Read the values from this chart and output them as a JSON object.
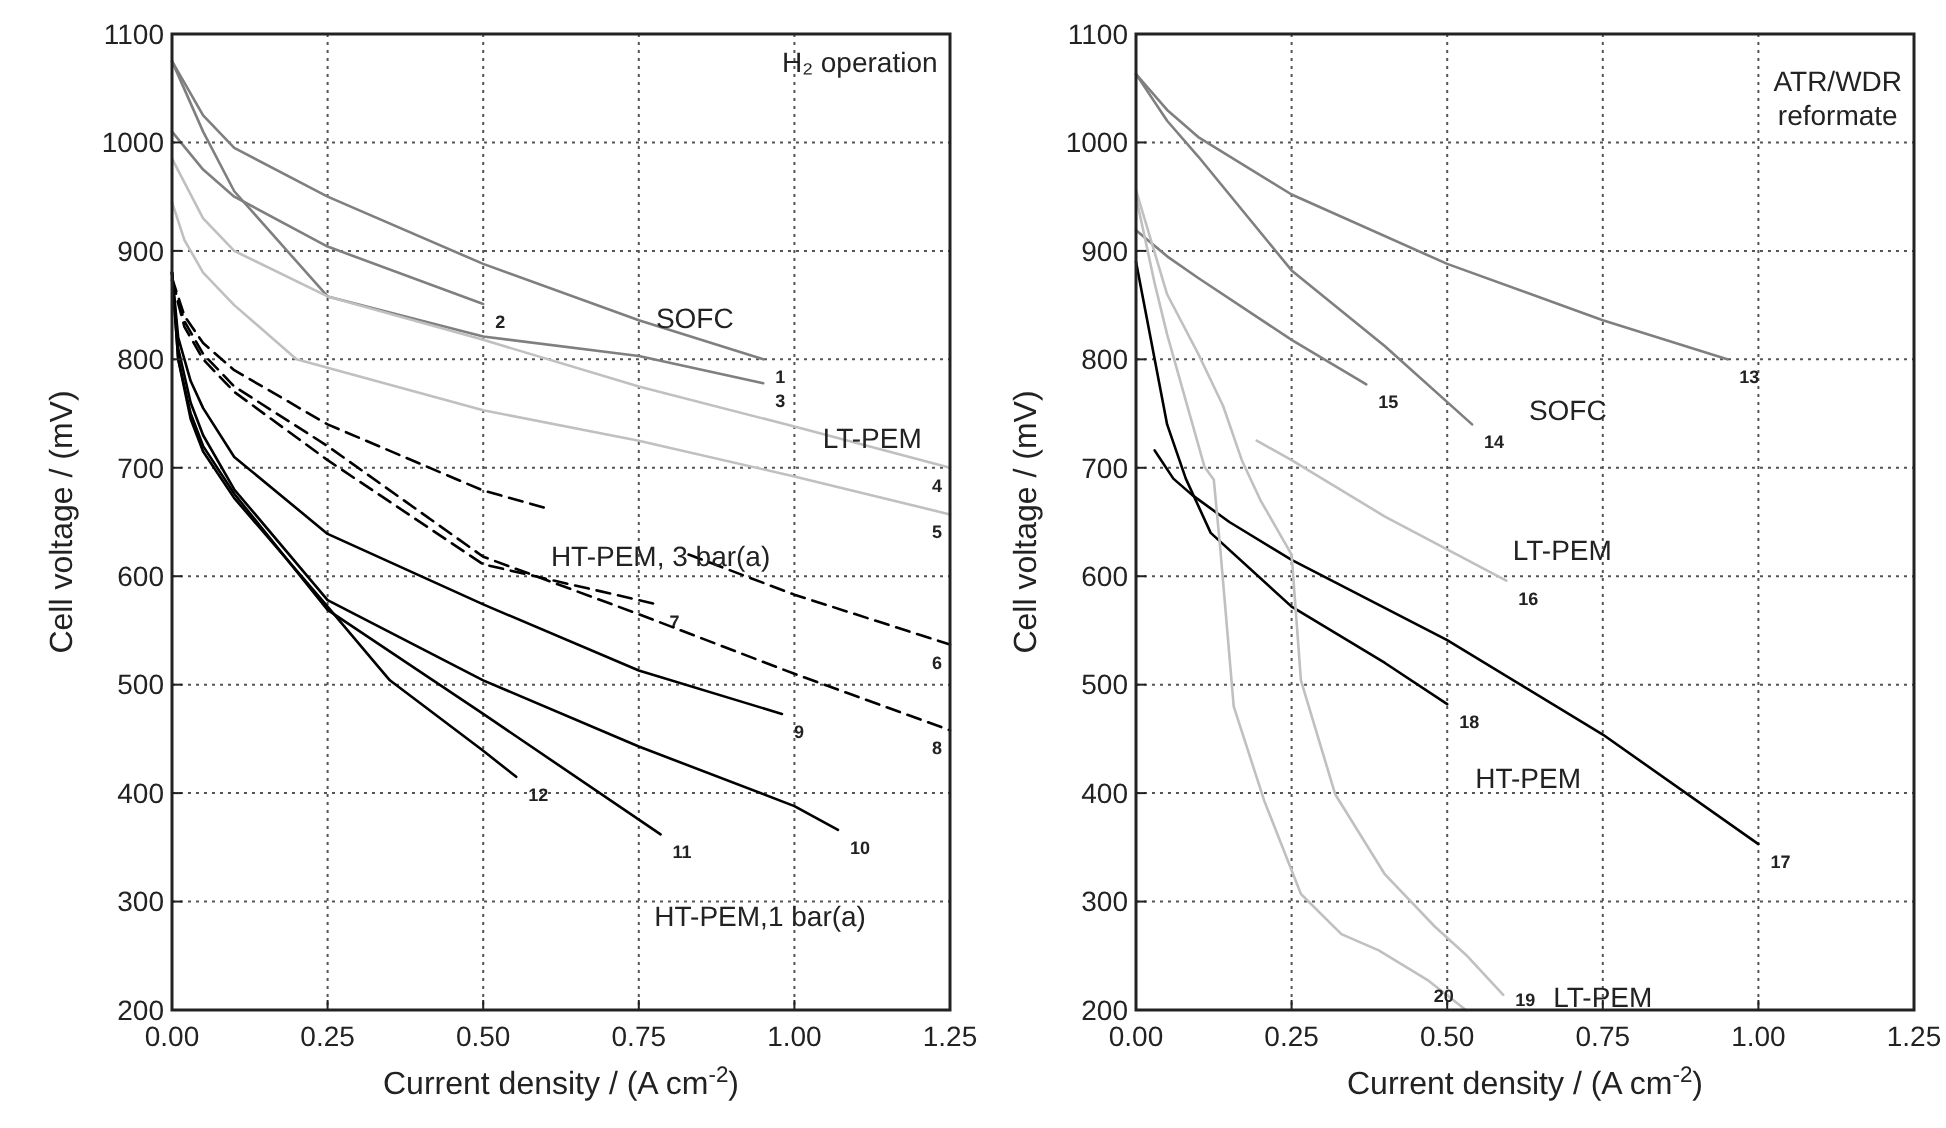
{
  "chart_data": [
    {
      "type": "line",
      "xlabel": "Current density / (A cm$^{-2}$)",
      "ylabel": "Cell voltage / (mV)",
      "xlim": [
        0,
        1.25
      ],
      "ylim": [
        200,
        1100
      ],
      "grid": true,
      "xticks": [
        {
          "value": 0,
          "label": "0.00"
        },
        {
          "value": 0.25,
          "label": "0.25"
        },
        {
          "value": 0.5,
          "label": "0.50"
        },
        {
          "value": 0.75,
          "label": "0.75"
        },
        {
          "value": 1,
          "label": "1.00"
        },
        {
          "value": 1.25,
          "label": "1.25"
        }
      ],
      "yticks": [
        200,
        300,
        400,
        500,
        600,
        700,
        800,
        900,
        1000,
        1100
      ],
      "annotations": [
        "H₂ operation",
        "SOFC",
        "LT-PEM",
        "HT-PEM, 3 bar(a)",
        "HT-PEM,1 bar(a)"
      ],
      "series": [
        {
          "name": "1",
          "color": "#7f7f7f",
          "x": [
            0,
            0.05,
            0.1,
            0.25,
            0.5,
            0.75,
            0.95
          ],
          "values": [
            1075,
            1025,
            995,
            950,
            888,
            836,
            800
          ]
        },
        {
          "name": "2",
          "color": "#7f7f7f",
          "x": [
            0,
            0.05,
            0.1,
            0.25,
            0.5
          ],
          "values": [
            1010,
            975,
            950,
            904,
            851
          ]
        },
        {
          "name": "3",
          "color": "#7f7f7f",
          "x": [
            0,
            0.05,
            0.1,
            0.25,
            0.5,
            0.75,
            0.95
          ],
          "values": [
            1075,
            1010,
            955,
            858,
            821,
            803,
            778
          ]
        },
        {
          "name": "4",
          "color": "#c0c0c0",
          "x": [
            0,
            0.05,
            0.1,
            0.25,
            0.5,
            0.75,
            1,
            1.25
          ],
          "values": [
            985,
            930,
            900,
            858,
            818,
            775,
            738,
            700
          ]
        },
        {
          "name": "5",
          "color": "#c0c0c0",
          "x": [
            0,
            0.02,
            0.05,
            0.1,
            0.2,
            0.5,
            0.75,
            1,
            1.25
          ],
          "values": [
            945,
            910,
            880,
            850,
            800,
            753,
            725,
            692,
            657
          ]
        },
        {
          "name": "6",
          "color": "#000000",
          "line_style": "dashed",
          "x": [
            0,
            0.02,
            0.05,
            0.1,
            0.25,
            0.5,
            0.6,
            0.7,
            0.83,
            1,
            1.25
          ],
          "values": [
            875,
            840,
            815,
            790,
            740,
            679,
            663,
            null,
            620,
            583,
            537
          ]
        },
        {
          "name": "7",
          "color": "#000000",
          "line_style": "dashed",
          "x": [
            0,
            0.02,
            0.05,
            0.1,
            0.25,
            0.5,
            0.78
          ],
          "values": [
            873,
            830,
            800,
            770,
            707,
            611,
            574
          ]
        },
        {
          "name": "8",
          "color": "#000000",
          "line_style": "dashed",
          "x": [
            0,
            0.02,
            0.05,
            0.1,
            0.25,
            0.5,
            0.75,
            1,
            1.25
          ],
          "values": [
            873,
            835,
            805,
            775,
            720,
            618,
            565,
            510,
            458
          ]
        },
        {
          "name": "9",
          "color": "#000000",
          "x": [
            0,
            0.01,
            0.03,
            0.05,
            0.1,
            0.25,
            0.5,
            0.75,
            0.98
          ],
          "values": [
            880,
            820,
            780,
            755,
            710,
            639,
            574,
            513,
            473
          ]
        },
        {
          "name": "10",
          "color": "#000000",
          "x": [
            0,
            0.01,
            0.03,
            0.05,
            0.1,
            0.25,
            0.5,
            0.75,
            1,
            1.07
          ],
          "values": [
            880,
            810,
            760,
            730,
            680,
            578,
            504,
            443,
            388,
            366
          ]
        },
        {
          "name": "11",
          "color": "#000000",
          "x": [
            0,
            0.01,
            0.03,
            0.05,
            0.1,
            0.25,
            0.5,
            0.785
          ],
          "values": [
            880,
            800,
            750,
            720,
            676,
            569,
            473,
            362
          ]
        },
        {
          "name": "12",
          "color": "#000000",
          "x": [
            0,
            0.01,
            0.03,
            0.05,
            0.1,
            0.25,
            0.35,
            0.5,
            0.553
          ],
          "values": [
            880,
            800,
            745,
            715,
            672,
            572,
            504,
            439,
            415
          ]
        }
      ]
    },
    {
      "type": "line",
      "xlabel": "Current density / (A cm$^{-2}$)",
      "ylabel": "Cell voltage / (mV)",
      "xlim": [
        0,
        1.25
      ],
      "ylim": [
        200,
        1100
      ],
      "grid": true,
      "xticks": [
        {
          "value": 0,
          "label": "0.00"
        },
        {
          "value": 0.25,
          "label": "0.25"
        },
        {
          "value": 0.5,
          "label": "0.50"
        },
        {
          "value": 0.75,
          "label": "0.75"
        },
        {
          "value": 1,
          "label": "1.00"
        },
        {
          "value": 1.25,
          "label": "1.25"
        }
      ],
      "yticks": [
        200,
        300,
        400,
        500,
        600,
        700,
        800,
        900,
        1000,
        1100
      ],
      "annotations": [
        "ATR/WDR\nreformate",
        "SOFC",
        "LT-PEM",
        "HT-PEM",
        "LT-PEM"
      ],
      "series": [
        {
          "name": "13",
          "color": "#7f7f7f",
          "x": [
            0,
            0.05,
            0.1,
            0.25,
            0.5,
            0.75,
            0.95
          ],
          "values": [
            1063,
            1030,
            1005,
            952,
            888,
            836,
            800
          ]
        },
        {
          "name": "14",
          "color": "#7f7f7f",
          "x": [
            0,
            0.05,
            0.1,
            0.25,
            0.4,
            0.54
          ],
          "values": [
            1063,
            1020,
            987,
            882,
            812,
            740
          ]
        },
        {
          "name": "15",
          "color": "#7f7f7f",
          "x": [
            0,
            0.05,
            0.1,
            0.25,
            0.37
          ],
          "values": [
            919,
            895,
            875,
            818,
            777
          ]
        },
        {
          "name": "16",
          "color": "#c0c0c0",
          "x": [
            0.194,
            0.25,
            0.4,
            0.595
          ],
          "values": [
            725,
            707,
            655,
            596
          ]
        },
        {
          "name": "17",
          "color": "#000000",
          "x": [
            0.03,
            0.06,
            0.09,
            0.15,
            0.25,
            0.5,
            0.75,
            1
          ],
          "values": [
            716,
            690,
            675,
            650,
            615,
            541,
            454,
            353
          ]
        },
        {
          "name": "18",
          "color": "#000000",
          "x": [
            0,
            0.03,
            0.05,
            0.08,
            0.12,
            0.25,
            0.4,
            0.5
          ],
          "values": [
            890,
            800,
            740,
            690,
            640,
            572,
            520,
            482
          ]
        },
        {
          "name": "19",
          "color": "#c0c0c0",
          "x": [
            0,
            0.05,
            0.1,
            0.14,
            0.17,
            0.2,
            0.25,
            0.265,
            0.32,
            0.4,
            0.48,
            0.53,
            0.59
          ],
          "values": [
            956,
            860,
            805,
            757,
            707,
            670,
            620,
            504,
            399,
            325,
            277,
            251,
            214
          ]
        },
        {
          "name": "20",
          "color": "#c0c0c0",
          "x": [
            0,
            0.03,
            0.05,
            0.08,
            0.11,
            0.125,
            0.135,
            0.157,
            0.206,
            0.265,
            0.33,
            0.39,
            0.47,
            0.53
          ],
          "values": [
            950,
            870,
            823,
            762,
            701,
            689,
            628,
            480,
            393,
            307,
            270,
            255,
            227,
            200
          ]
        }
      ]
    }
  ]
}
